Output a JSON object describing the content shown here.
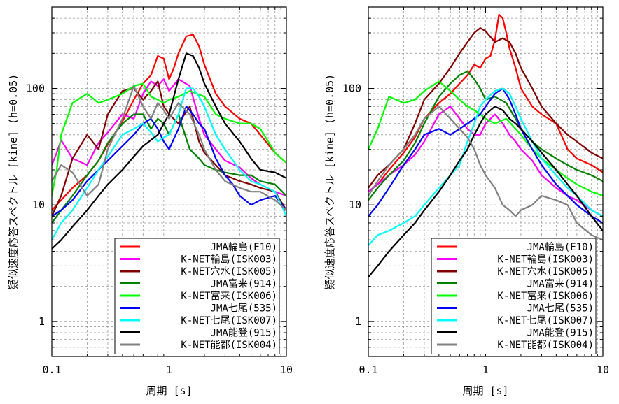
{
  "chart_data": [
    {
      "type": "line",
      "xscale": "log",
      "yscale": "log",
      "xlim": [
        0.1,
        10
      ],
      "ylim": [
        0.5,
        500
      ],
      "xlabel": "周期 [s]",
      "ylabel": "疑似速度応答スペクトル [kine] (h=0.05)",
      "xticks": [
        "0.1",
        "1",
        "10"
      ],
      "yticks": [
        "1",
        "10",
        "100"
      ],
      "grid": true,
      "legend_position": "bottom-right",
      "series": [
        {
          "name": "JMA輪島(E10)",
          "color": "#ff0000",
          "x": [
            0.1,
            0.12,
            0.15,
            0.2,
            0.25,
            0.3,
            0.4,
            0.5,
            0.6,
            0.7,
            0.8,
            0.9,
            1.0,
            1.1,
            1.2,
            1.4,
            1.6,
            1.8,
            2,
            2.5,
            3,
            4,
            5,
            6,
            8,
            10
          ],
          "y": [
            9,
            11,
            14,
            18,
            24,
            33,
            52,
            80,
            110,
            130,
            190,
            180,
            120,
            150,
            200,
            280,
            290,
            230,
            160,
            90,
            70,
            55,
            50,
            40,
            28,
            23
          ]
        },
        {
          "name": "K-NET輪島(ISK003)",
          "color": "#ff00ff",
          "x": [
            0.1,
            0.11,
            0.12,
            0.15,
            0.2,
            0.25,
            0.3,
            0.4,
            0.5,
            0.6,
            0.7,
            0.8,
            0.9,
            1.0,
            1.2,
            1.5,
            1.8,
            2,
            2.5,
            3,
            4,
            5,
            6,
            8,
            10
          ],
          "y": [
            22,
            28,
            36,
            25,
            22,
            34,
            42,
            60,
            55,
            90,
            115,
            105,
            120,
            95,
            120,
            105,
            55,
            40,
            30,
            24,
            21,
            17,
            15,
            13,
            12
          ]
        },
        {
          "name": "K-NET穴水(ISK005)",
          "color": "#800000",
          "x": [
            0.1,
            0.12,
            0.15,
            0.2,
            0.25,
            0.3,
            0.4,
            0.5,
            0.6,
            0.7,
            0.8,
            0.9,
            1.0,
            1.2,
            1.5,
            1.8,
            2,
            2.5,
            3,
            4,
            5,
            6,
            8,
            10
          ],
          "y": [
            8,
            12,
            25,
            40,
            30,
            60,
            95,
            100,
            80,
            95,
            115,
            70,
            60,
            50,
            70,
            35,
            28,
            22,
            18,
            16,
            15,
            14,
            13,
            9
          ]
        },
        {
          "name": "JMA富来(914)",
          "color": "#008000",
          "x": [
            0.1,
            0.12,
            0.15,
            0.2,
            0.25,
            0.3,
            0.4,
            0.5,
            0.6,
            0.7,
            0.8,
            0.9,
            1.0,
            1.2,
            1.5,
            1.8,
            2,
            2.5,
            3,
            4,
            5,
            6,
            8,
            10
          ],
          "y": [
            7,
            9,
            12,
            18,
            24,
            34,
            50,
            60,
            60,
            45,
            55,
            50,
            40,
            60,
            30,
            25,
            22,
            20,
            19,
            18,
            18,
            16,
            15,
            12
          ]
        },
        {
          "name": "K-NET富来(ISK006)",
          "color": "#00ff00",
          "x": [
            0.1,
            0.11,
            0.12,
            0.15,
            0.2,
            0.25,
            0.3,
            0.4,
            0.5,
            0.6,
            0.7,
            0.8,
            0.9,
            1.0,
            1.2,
            1.5,
            2,
            2.5,
            3,
            4,
            5,
            6,
            7,
            8,
            10
          ],
          "y": [
            12,
            20,
            40,
            75,
            90,
            75,
            80,
            90,
            105,
            110,
            85,
            80,
            75,
            80,
            85,
            95,
            85,
            60,
            55,
            50,
            50,
            45,
            35,
            28,
            23
          ]
        },
        {
          "name": "JMA七尾(535)",
          "color": "#0000ff",
          "x": [
            0.1,
            0.12,
            0.15,
            0.2,
            0.25,
            0.3,
            0.4,
            0.5,
            0.6,
            0.7,
            0.8,
            0.9,
            1.0,
            1.2,
            1.4,
            1.6,
            1.8,
            2,
            2.5,
            3,
            3.5,
            4,
            5,
            6,
            8,
            10
          ],
          "y": [
            8,
            9,
            11,
            16,
            20,
            24,
            32,
            40,
            50,
            55,
            45,
            35,
            30,
            45,
            70,
            60,
            50,
            45,
            25,
            18,
            15,
            12,
            10,
            11,
            12,
            9
          ]
        },
        {
          "name": "K-NET七尾(ISK007)",
          "color": "#00ffff",
          "x": [
            0.1,
            0.12,
            0.15,
            0.2,
            0.25,
            0.3,
            0.4,
            0.5,
            0.6,
            0.7,
            0.8,
            0.9,
            1.0,
            1.2,
            1.4,
            1.6,
            1.8,
            2,
            2.5,
            3,
            4,
            5,
            6,
            8,
            10
          ],
          "y": [
            5,
            7,
            9,
            14,
            20,
            26,
            40,
            45,
            50,
            42,
            35,
            38,
            40,
            60,
            100,
            100,
            85,
            70,
            40,
            30,
            20,
            16,
            15,
            13,
            8
          ]
        },
        {
          "name": "JMA能登(915)",
          "color": "#000000",
          "x": [
            0.1,
            0.12,
            0.15,
            0.2,
            0.25,
            0.3,
            0.4,
            0.5,
            0.6,
            0.7,
            0.8,
            0.9,
            1.0,
            1.2,
            1.4,
            1.6,
            1.8,
            2,
            2.5,
            3,
            4,
            5,
            6,
            8,
            10
          ],
          "y": [
            4.2,
            5,
            6.5,
            9,
            12,
            15,
            20,
            26,
            32,
            36,
            40,
            50,
            60,
            120,
            200,
            190,
            150,
            110,
            70,
            50,
            35,
            25,
            20,
            19,
            17
          ]
        },
        {
          "name": "K-NET能都(ISK004)",
          "color": "#808080",
          "x": [
            0.1,
            0.12,
            0.15,
            0.2,
            0.25,
            0.3,
            0.4,
            0.5,
            0.6,
            0.7,
            0.8,
            0.9,
            1.0,
            1.2,
            1.5,
            1.8,
            2,
            2.5,
            3,
            4,
            5,
            6,
            8,
            10
          ],
          "y": [
            16,
            22,
            19,
            12,
            15,
            30,
            55,
            105,
            70,
            55,
            75,
            65,
            55,
            75,
            60,
            40,
            30,
            20,
            16,
            14,
            13,
            13,
            11,
            9
          ]
        }
      ]
    },
    {
      "type": "line",
      "xscale": "log",
      "yscale": "log",
      "xlim": [
        0.1,
        10
      ],
      "ylim": [
        0.5,
        500
      ],
      "xlabel": "周期 [s]",
      "ylabel": "疑似速度応答スペクトル [kine] (h=0.05)",
      "xticks": [
        "0.1",
        "1",
        "10"
      ],
      "yticks": [
        "1",
        "10",
        "100"
      ],
      "grid": true,
      "legend_position": "bottom-right",
      "series": [
        {
          "name": "JMA輪島(E10)",
          "color": "#ff0000",
          "x": [
            0.1,
            0.12,
            0.15,
            0.2,
            0.25,
            0.3,
            0.4,
            0.5,
            0.6,
            0.7,
            0.8,
            0.9,
            1.0,
            1.1,
            1.2,
            1.3,
            1.4,
            1.5,
            1.6,
            1.8,
            2,
            2.5,
            3,
            4,
            5,
            6,
            8,
            10
          ],
          "y": [
            13,
            15,
            20,
            28,
            38,
            55,
            75,
            90,
            110,
            130,
            160,
            150,
            180,
            190,
            260,
            430,
            400,
            300,
            220,
            150,
            100,
            70,
            60,
            50,
            30,
            25,
            22,
            19
          ]
        },
        {
          "name": "K-NET輪島(ISK003)",
          "color": "#ff00ff",
          "x": [
            0.1,
            0.12,
            0.15,
            0.2,
            0.25,
            0.3,
            0.4,
            0.5,
            0.6,
            0.7,
            0.8,
            0.9,
            1.0,
            1.2,
            1.4,
            1.6,
            1.8,
            2,
            2.5,
            3,
            4,
            5,
            6,
            8,
            10
          ],
          "y": [
            13,
            15,
            18,
            22,
            27,
            35,
            60,
            70,
            55,
            45,
            40,
            40,
            50,
            60,
            50,
            40,
            35,
            30,
            24,
            18,
            14,
            12,
            11,
            9,
            8
          ]
        },
        {
          "name": "K-NET穴水(ISK005)",
          "color": "#800000",
          "x": [
            0.1,
            0.12,
            0.15,
            0.2,
            0.25,
            0.3,
            0.4,
            0.5,
            0.6,
            0.7,
            0.8,
            0.9,
            1.0,
            1.2,
            1.4,
            1.6,
            1.8,
            2,
            2.5,
            3,
            4,
            5,
            6,
            8,
            10
          ],
          "y": [
            14,
            18,
            22,
            30,
            50,
            80,
            110,
            150,
            200,
            250,
            300,
            330,
            310,
            250,
            270,
            250,
            200,
            150,
            100,
            70,
            50,
            40,
            35,
            28,
            25
          ]
        },
        {
          "name": "JMA富来(914)",
          "color": "#008000",
          "x": [
            0.1,
            0.12,
            0.15,
            0.2,
            0.25,
            0.3,
            0.4,
            0.5,
            0.6,
            0.7,
            0.8,
            0.9,
            1.0,
            1.2,
            1.5,
            1.8,
            2,
            2.5,
            3,
            4,
            5,
            6,
            8,
            10
          ],
          "y": [
            11,
            14,
            18,
            24,
            34,
            50,
            85,
            110,
            130,
            140,
            120,
            100,
            80,
            85,
            75,
            55,
            45,
            35,
            30,
            25,
            22,
            20,
            18,
            16
          ]
        },
        {
          "name": "K-NET富来(ISK006)",
          "color": "#00ff00",
          "x": [
            0.1,
            0.12,
            0.15,
            0.2,
            0.25,
            0.3,
            0.4,
            0.5,
            0.6,
            0.7,
            0.8,
            0.9,
            1.0,
            1.2,
            1.5,
            1.8,
            2,
            2.5,
            3,
            4,
            5,
            6,
            8,
            10
          ],
          "y": [
            30,
            45,
            85,
            75,
            80,
            95,
            115,
            95,
            80,
            70,
            65,
            60,
            55,
            50,
            55,
            45,
            40,
            30,
            25,
            20,
            17,
            15,
            13,
            12
          ]
        },
        {
          "name": "JMA七尾(535)",
          "color": "#0000ff",
          "x": [
            0.1,
            0.12,
            0.15,
            0.2,
            0.25,
            0.3,
            0.4,
            0.5,
            0.6,
            0.7,
            0.8,
            0.9,
            1.0,
            1.2,
            1.4,
            1.6,
            1.8,
            2,
            2.5,
            3,
            4,
            5,
            6,
            8,
            10
          ],
          "y": [
            8,
            10,
            14,
            22,
            30,
            40,
            45,
            40,
            45,
            50,
            55,
            60,
            70,
            90,
            100,
            80,
            60,
            45,
            30,
            22,
            15,
            12,
            10,
            8,
            7
          ]
        },
        {
          "name": "K-NET七尾(ISK007)",
          "color": "#00ffff",
          "x": [
            0.1,
            0.12,
            0.15,
            0.2,
            0.25,
            0.3,
            0.4,
            0.5,
            0.6,
            0.7,
            0.8,
            0.9,
            1.0,
            1.2,
            1.4,
            1.6,
            1.8,
            2,
            2.5,
            3,
            4,
            5,
            6,
            8,
            10
          ],
          "y": [
            4.5,
            5.5,
            6,
            7,
            8,
            10,
            14,
            18,
            22,
            35,
            50,
            70,
            80,
            95,
            100,
            90,
            70,
            55,
            35,
            25,
            18,
            14,
            12,
            9,
            8
          ]
        },
        {
          "name": "JMA能登(915)",
          "color": "#000000",
          "x": [
            0.1,
            0.12,
            0.15,
            0.2,
            0.25,
            0.3,
            0.4,
            0.5,
            0.6,
            0.7,
            0.8,
            0.9,
            1.0,
            1.2,
            1.4,
            1.6,
            1.8,
            2,
            2.5,
            3,
            4,
            5,
            6,
            8,
            10
          ],
          "y": [
            2.4,
            3,
            4,
            5.5,
            7,
            9,
            13,
            18,
            24,
            30,
            40,
            50,
            60,
            70,
            65,
            55,
            50,
            45,
            35,
            28,
            20,
            15,
            12,
            8,
            6
          ]
        },
        {
          "name": "K-NET能都(ISK004)",
          "color": "#808080",
          "x": [
            0.1,
            0.12,
            0.15,
            0.2,
            0.25,
            0.3,
            0.4,
            0.5,
            0.6,
            0.7,
            0.8,
            0.9,
            1.0,
            1.2,
            1.4,
            1.6,
            1.8,
            2,
            2.5,
            3,
            4,
            5,
            6,
            8,
            10
          ],
          "y": [
            12,
            16,
            22,
            30,
            40,
            55,
            70,
            55,
            45,
            38,
            30,
            22,
            18,
            14,
            10,
            9,
            8,
            9,
            10,
            12,
            11,
            10,
            7,
            5.5,
            5
          ]
        }
      ]
    }
  ]
}
